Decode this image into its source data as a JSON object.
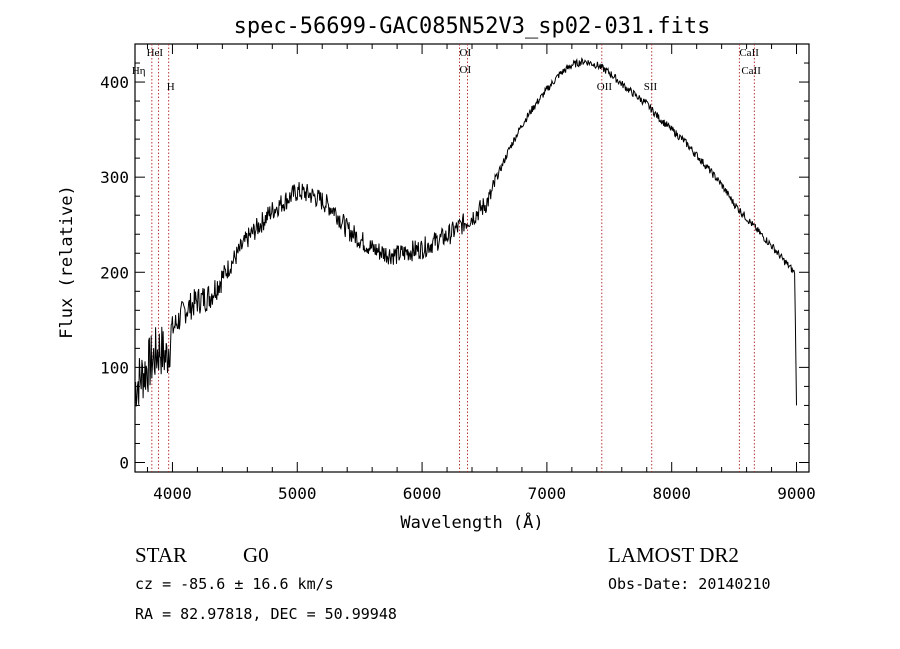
{
  "chart_data": {
    "type": "line",
    "title": "spec-56699-GAC085N52V3_sp02-031.fits",
    "xlabel": "Wavelength (Å)",
    "ylabel": "Flux (relative)",
    "xlim": [
      3700,
      9100
    ],
    "ylim": [
      -10,
      440
    ],
    "xticks": [
      4000,
      5000,
      6000,
      7000,
      8000,
      9000
    ],
    "yticks": [
      0,
      100,
      200,
      300,
      400
    ],
    "series": [
      {
        "x": [
          3700,
          3750,
          3800,
          3850,
          3900,
          3950,
          4000,
          4050,
          4100,
          4150,
          4200,
          4300,
          4400,
          4500,
          4600,
          4700,
          4800,
          4900,
          5000,
          5100,
          5200,
          5300,
          5400,
          5500,
          5600,
          5700,
          5800,
          5900,
          6000,
          6100,
          6200,
          6300,
          6400,
          6500,
          6550,
          6600,
          6700,
          6800,
          6900,
          7000,
          7100,
          7200,
          7300,
          7400,
          7500,
          7600,
          7700,
          7800,
          7900,
          8000,
          8100,
          8200,
          8300,
          8400,
          8500,
          8600,
          8700,
          8800,
          8900,
          8950,
          8980,
          9000
        ],
        "y": [
          80,
          90,
          100,
          110,
          120,
          110,
          140,
          150,
          160,
          165,
          170,
          175,
          195,
          215,
          235,
          250,
          265,
          275,
          285,
          282,
          275,
          265,
          245,
          235,
          225,
          220,
          218,
          222,
          225,
          232,
          238,
          248,
          258,
          270,
          280,
          300,
          330,
          355,
          375,
          392,
          408,
          418,
          422,
          418,
          410,
          398,
          387,
          377,
          362,
          350,
          338,
          323,
          308,
          292,
          272,
          257,
          242,
          228,
          212,
          205,
          200,
          195
        ]
      }
    ],
    "lines": [
      {
        "label": "HeI",
        "x": 3889
      },
      {
        "label": "Hη",
        "x": 3835
      },
      {
        "label": "H",
        "x": 3970
      },
      {
        "label": "OI",
        "x": 6300
      },
      {
        "label": "OI",
        "x": 6364
      },
      {
        "label": "OII",
        "x": 7440
      },
      {
        "label": "SII",
        "x": 7840
      },
      {
        "label": "CaII",
        "x": 8542
      },
      {
        "label": "CaII",
        "x": 8662
      }
    ],
    "grid": false
  },
  "info": {
    "object_type": "STAR",
    "subclass": "G0",
    "survey": "LAMOST DR2",
    "cz": "cz = -85.6 ± 16.6 km/s",
    "obs_date": "Obs-Date: 20140210",
    "coords": "RA =  82.97818, DEC =  50.99948"
  }
}
